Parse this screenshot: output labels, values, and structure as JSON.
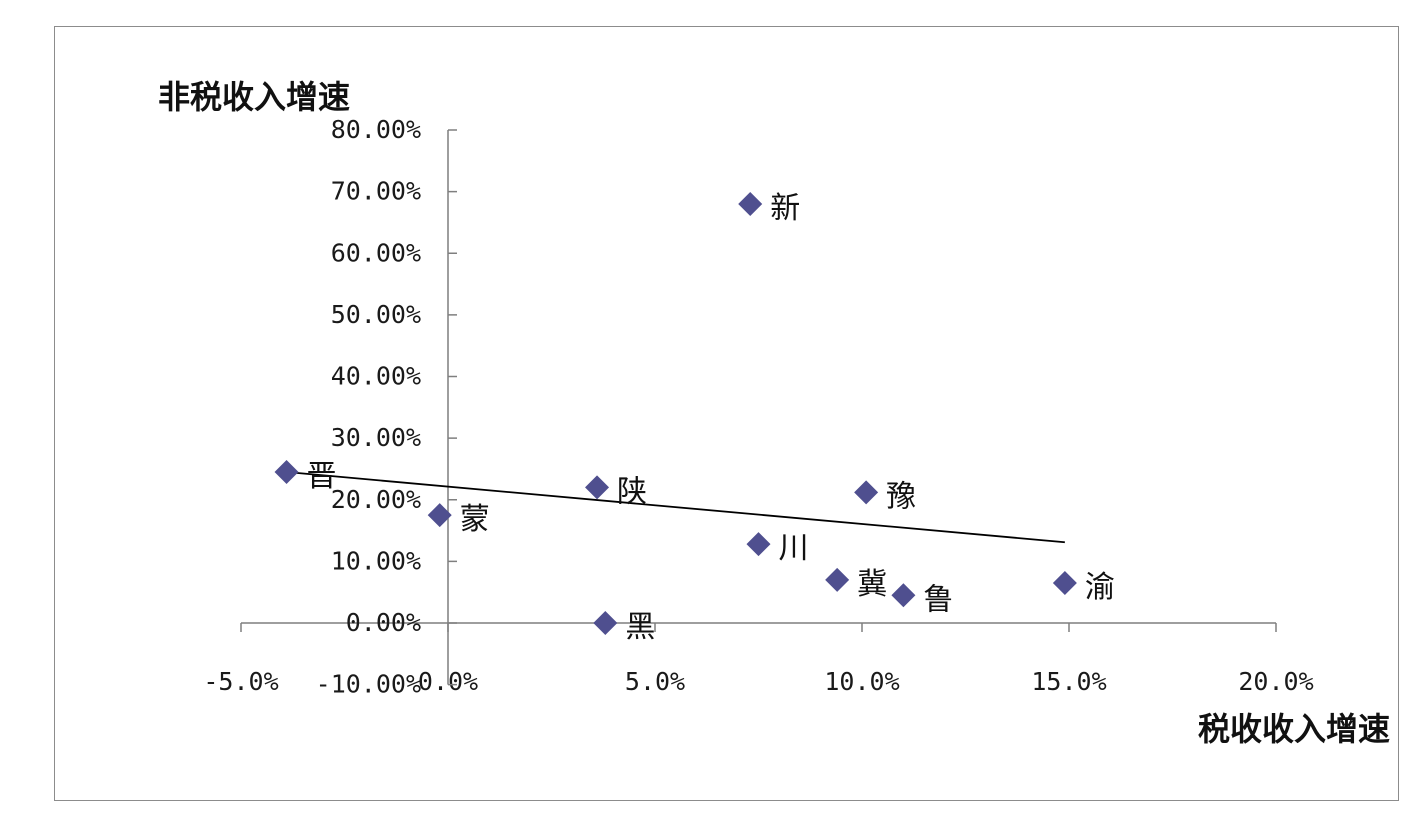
{
  "chart_data": {
    "type": "scatter",
    "xlabel": "税收收入增速",
    "ylabel": "非税收入增速",
    "xlim": [
      -5.0,
      20.0
    ],
    "ylim": [
      -10.0,
      80.0
    ],
    "x_ticks": [
      -5.0,
      0.0,
      5.0,
      10.0,
      15.0,
      20.0
    ],
    "x_tick_labels": [
      "-5.0%",
      "0.0%",
      "5.0%",
      "10.0%",
      "15.0%",
      "20.0%"
    ],
    "y_ticks": [
      -10,
      0,
      10,
      20,
      30,
      40,
      50,
      60,
      70,
      80
    ],
    "y_tick_labels": [
      "-10.00%",
      "0.00%",
      "10.00%",
      "20.00%",
      "30.00%",
      "40.00%",
      "50.00%",
      "60.00%",
      "70.00%",
      "80.00%"
    ],
    "points": [
      {
        "label": "晋",
        "x": -3.9,
        "y": 24.5
      },
      {
        "label": "蒙",
        "x": -0.2,
        "y": 17.5
      },
      {
        "label": "陕",
        "x": 3.6,
        "y": 22.0
      },
      {
        "label": "黑",
        "x": 3.8,
        "y": 0.0
      },
      {
        "label": "新",
        "x": 7.3,
        "y": 68.0
      },
      {
        "label": "川",
        "x": 7.5,
        "y": 12.8
      },
      {
        "label": "冀",
        "x": 9.4,
        "y": 7.0
      },
      {
        "label": "豫",
        "x": 10.1,
        "y": 21.2
      },
      {
        "label": "鲁",
        "x": 11.0,
        "y": 4.5
      },
      {
        "label": "渝",
        "x": 14.9,
        "y": 6.5
      }
    ],
    "trendline": {
      "x": [
        -3.9,
        14.9
      ],
      "y": [
        24.5,
        13.1
      ]
    },
    "marker": "diamond",
    "marker_color": "#4f4f8f",
    "trend_color": "#000000",
    "grid": false,
    "legend": "none"
  }
}
